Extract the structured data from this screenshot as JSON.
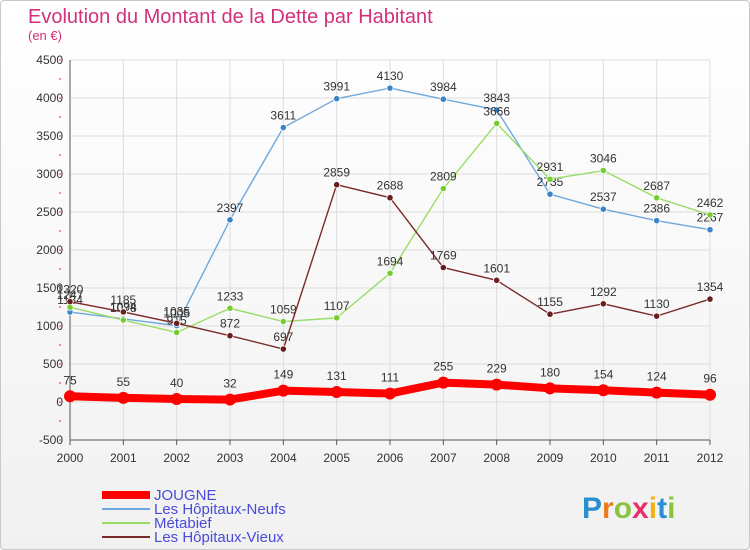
{
  "chart_data": {
    "type": "line",
    "title": "Evolution du Montant de la Dette par Habitant",
    "subtitle": "(en €)",
    "xlabel": "",
    "ylabel": "",
    "ylim": [
      -500,
      4500
    ],
    "y_ticks": [
      -500,
      0,
      500,
      1000,
      1500,
      2000,
      2500,
      3000,
      3500,
      4000,
      4500
    ],
    "grid": true,
    "legend_position": "bottom-left",
    "categories": [
      "2000",
      "2001",
      "2002",
      "2003",
      "2004",
      "2005",
      "2006",
      "2007",
      "2008",
      "2009",
      "2010",
      "2011",
      "2012"
    ],
    "series": [
      {
        "name": "JOUGNE",
        "color": "#ff0000",
        "values": [
          75,
          55,
          40,
          32,
          149,
          131,
          111,
          255,
          229,
          180,
          154,
          124,
          96
        ]
      },
      {
        "name": "Les Hôpitaux-Neufs",
        "color": "#6fa8dc",
        "marker": "#3a85c6",
        "values": [
          1184,
          1094,
          1005,
          2397,
          3611,
          3991,
          4130,
          3984,
          3843,
          2735,
          2537,
          2386,
          2267
        ]
      },
      {
        "name": "Métabief",
        "color": "#99dd66",
        "marker": "#77cc33",
        "values": [
          1247,
          1078,
          915,
          1233,
          1059,
          1107,
          1694,
          2809,
          3666,
          2931,
          3046,
          2687,
          2462
        ]
      },
      {
        "name": "Les Hôpitaux-Vieux",
        "color": "#7a2a2a",
        "marker": "#6a1f1f",
        "values": [
          1320,
          1185,
          1035,
          872,
          697,
          2859,
          2688,
          1769,
          1601,
          1155,
          1292,
          1130,
          1354
        ]
      }
    ]
  },
  "logo": {
    "text": "Proxiti"
  }
}
